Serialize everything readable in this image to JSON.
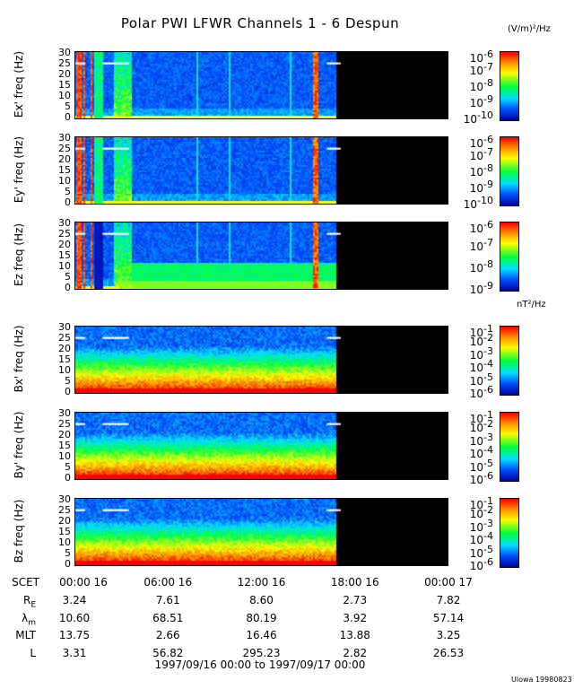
{
  "chart_data": {
    "type": "heatmap",
    "title": "Polar PWI LFWR Channels 1 - 6 Despun",
    "x_range_hours": [
      0,
      24
    ],
    "data_end_hours": 16.8,
    "panels": [
      {
        "name": "ex",
        "ylabel": "Ex' freq (Hz)",
        "ylim": [
          0,
          30
        ],
        "yticks": [
          "0",
          "5",
          "10",
          "15",
          "20",
          "25",
          "30"
        ],
        "colorbar_unit": "(V/m)²/Hz",
        "colorbar_ticks": [
          "-6",
          "-7",
          "-8",
          "-9",
          "-10"
        ],
        "kind": "E"
      },
      {
        "name": "ey",
        "ylabel": "Ey' freq (Hz)",
        "ylim": [
          0,
          30
        ],
        "yticks": [
          "0",
          "5",
          "10",
          "15",
          "20",
          "25",
          "30"
        ],
        "colorbar_ticks": [
          "-6",
          "-7",
          "-8",
          "-9",
          "-10"
        ],
        "kind": "E"
      },
      {
        "name": "ez",
        "ylabel": "Ez freq (Hz)",
        "ylim": [
          0,
          30
        ],
        "yticks": [
          "0",
          "5",
          "10",
          "15",
          "20",
          "25",
          "30"
        ],
        "colorbar_ticks": [
          "-6",
          "-7",
          "-8",
          "-9"
        ],
        "kind": "Ez"
      },
      {
        "name": "bx",
        "ylabel": "Bx' freq (Hz)",
        "ylim": [
          0,
          30
        ],
        "yticks": [
          "0",
          "5",
          "10",
          "15",
          "20",
          "25",
          "30"
        ],
        "colorbar_unit": "nT²/Hz",
        "colorbar_ticks": [
          "-1",
          "-2",
          "-3",
          "-4",
          "-5",
          "-6"
        ],
        "kind": "B"
      },
      {
        "name": "by",
        "ylabel": "By' freq (Hz)",
        "ylim": [
          0,
          30
        ],
        "yticks": [
          "0",
          "5",
          "10",
          "15",
          "20",
          "25",
          "30"
        ],
        "colorbar_ticks": [
          "-1",
          "-2",
          "-3",
          "-4",
          "-5",
          "-6"
        ],
        "kind": "B"
      },
      {
        "name": "bz",
        "ylabel": "Bz freq (Hz)",
        "ylim": [
          0,
          30
        ],
        "yticks": [
          "0",
          "5",
          "10",
          "15",
          "20",
          "25",
          "30"
        ],
        "colorbar_ticks": [
          "-1",
          "-2",
          "-3",
          "-4",
          "-5",
          "-6"
        ],
        "kind": "B"
      }
    ],
    "colorbar_base": "10",
    "colors": [
      "#0000a0",
      "#0050ff",
      "#00e0ff",
      "#00ff40",
      "#ffff00",
      "#ff9000",
      "#ff0000"
    ]
  },
  "ephemeris": {
    "time_label": "SCET",
    "times": [
      "00:00 16",
      "06:00 16",
      "12:00 16",
      "18:00 16",
      "00:00 17"
    ],
    "rows": [
      {
        "label": "R",
        "sub": "E",
        "values": [
          "3.24",
          "7.61",
          "8.60",
          "2.73",
          "7.82"
        ]
      },
      {
        "label": "λ",
        "sub": "m",
        "values": [
          "10.60",
          "68.51",
          "80.19",
          "3.92",
          "57.14"
        ]
      },
      {
        "label": "MLT",
        "sub": "",
        "values": [
          "13.75",
          "2.66",
          "16.46",
          "13.88",
          "3.25"
        ]
      },
      {
        "label": "L",
        "sub": "",
        "values": [
          "3.31",
          "56.82",
          "295.23",
          "2.82",
          "26.53"
        ]
      }
    ],
    "range": "1997/09/16 00:00 to 1997/09/17 00:00"
  },
  "footer": "Ulowa 19980823"
}
